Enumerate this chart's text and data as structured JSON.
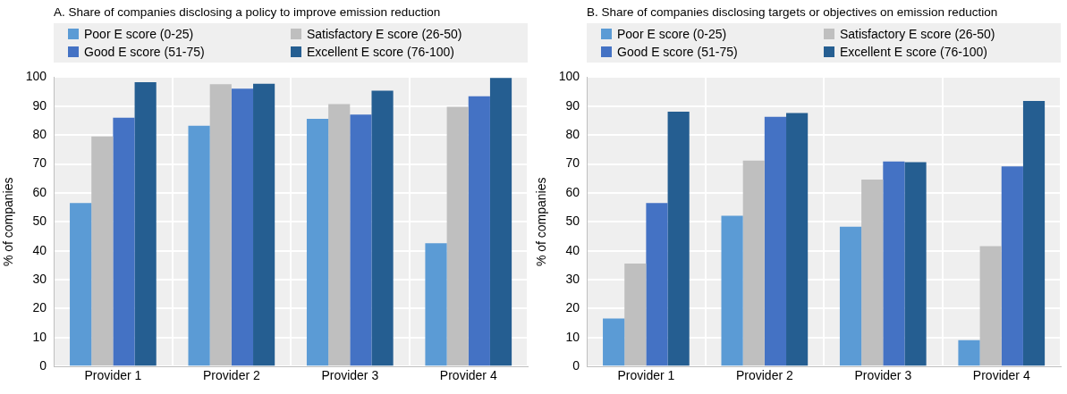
{
  "chart_data": [
    {
      "type": "bar",
      "title": "A. Share of companies disclosing a policy to improve emission reduction",
      "ylabel": "% of companies",
      "categories": [
        "Provider 1",
        "Provider 2",
        "Provider 3",
        "Provider 4"
      ],
      "ylim": [
        0,
        100
      ],
      "yticks": [
        0,
        10,
        20,
        30,
        40,
        50,
        60,
        70,
        80,
        90,
        100
      ],
      "grid": true,
      "legend": "top",
      "series": [
        {
          "name": "Poor E score (0-25)",
          "color": "#5b9bd5",
          "values": [
            56.5,
            83.2,
            85.6,
            42.6
          ]
        },
        {
          "name": "Satisfactory E score (26-50)",
          "color": "#bfbfbf",
          "values": [
            79.5,
            97.6,
            90.7,
            89.8
          ]
        },
        {
          "name": "Good E score (51-75)",
          "color": "#4472c4",
          "values": [
            86,
            96,
            87.1,
            93.4
          ]
        },
        {
          "name": "Excellent E score (76-100)",
          "color": "#255e91",
          "values": [
            98.3,
            97.7,
            95.3,
            99.7
          ]
        }
      ]
    },
    {
      "type": "bar",
      "title": "B. Share of companies disclosing targets or objectives on emission reduction",
      "ylabel": "% of companies",
      "categories": [
        "Provider 1",
        "Provider 2",
        "Provider 3",
        "Provider 4"
      ],
      "ylim": [
        0,
        100
      ],
      "yticks": [
        0,
        10,
        20,
        30,
        40,
        50,
        60,
        70,
        80,
        90,
        100
      ],
      "grid": true,
      "legend": "top",
      "series": [
        {
          "name": "Poor E score (0-25)",
          "color": "#5b9bd5",
          "values": [
            16.6,
            52.1,
            48.3,
            9.1
          ]
        },
        {
          "name": "Satisfactory E score (26-50)",
          "color": "#bfbfbf",
          "values": [
            35.6,
            71.2,
            64.6,
            41.6
          ]
        },
        {
          "name": "Good E score (51-75)",
          "color": "#4472c4",
          "values": [
            56.5,
            86.3,
            70.9,
            69.2
          ]
        },
        {
          "name": "Excellent E score (76-100)",
          "color": "#255e91",
          "values": [
            88.1,
            87.6,
            70.6,
            91.8
          ]
        }
      ]
    }
  ]
}
